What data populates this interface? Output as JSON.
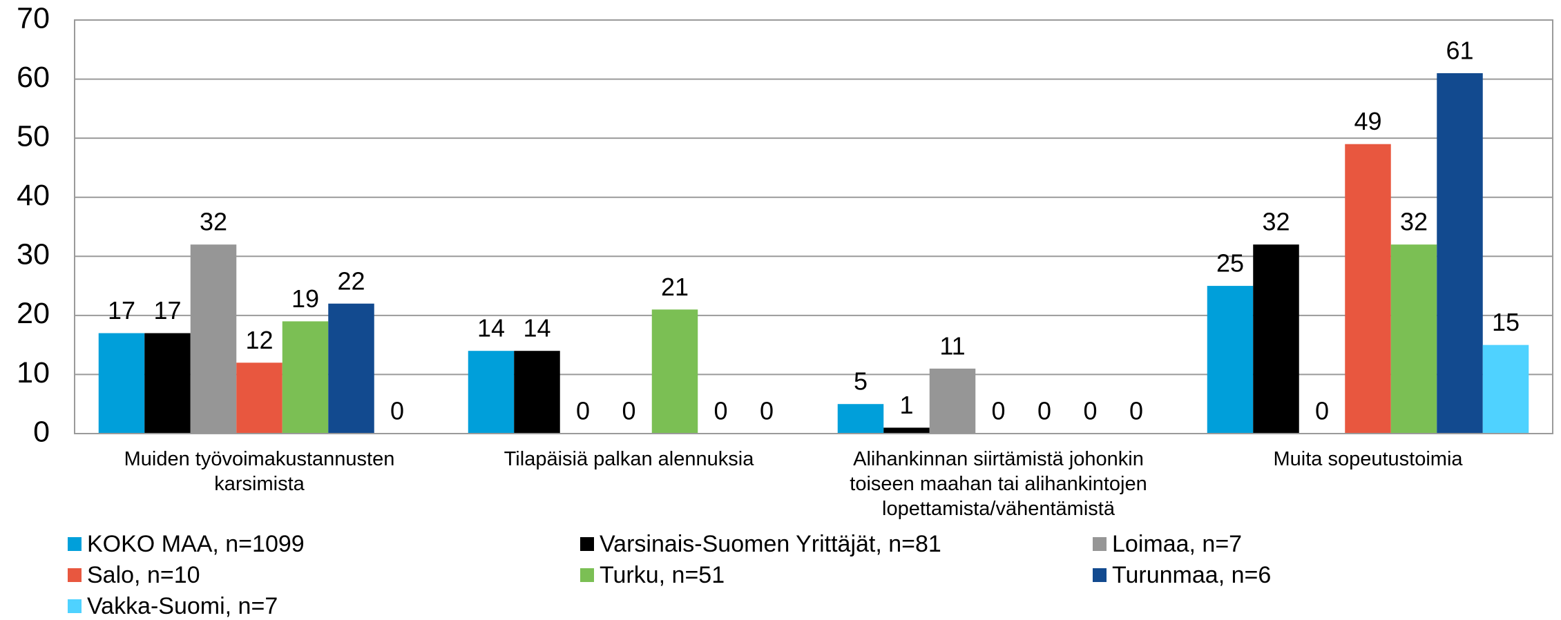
{
  "chart_data": {
    "type": "bar",
    "categories": [
      "Muiden työvoimakustannusten karsimista",
      "Tilapäisiä palkan alennuksia",
      "Alihankinnan siirtämistä johonkin toiseen maahan tai alihankintojen lopettamista/vähentämistä",
      "Muita sopeutustoimia"
    ],
    "series": [
      {
        "name": "KOKO MAA, n=1099",
        "color": "#009fda",
        "values": [
          17,
          14,
          5,
          25
        ]
      },
      {
        "name": "Varsinais-Suomen Yrittäjät, n=81",
        "color": "#000000",
        "values": [
          17,
          14,
          1,
          32
        ]
      },
      {
        "name": "Loimaa, n=7",
        "color": "#969696",
        "values": [
          32,
          0,
          11,
          0
        ]
      },
      {
        "name": "Salo, n=10",
        "color": "#e8573f",
        "values": [
          12,
          0,
          0,
          49
        ]
      },
      {
        "name": "Turku, n=51",
        "color": "#7bbf54",
        "values": [
          19,
          21,
          0,
          32
        ]
      },
      {
        "name": "Turunmaa, n=6",
        "color": "#124a8f",
        "values": [
          22,
          0,
          0,
          61
        ]
      },
      {
        "name": "Vakka-Suomi, n=7",
        "color": "#4fd2ff",
        "values": [
          0,
          0,
          0,
          15
        ]
      }
    ],
    "ylim": [
      0,
      70
    ],
    "yticks": [
      0,
      10,
      20,
      30,
      40,
      50,
      60,
      70
    ],
    "grid": true,
    "legend": "bottom"
  }
}
